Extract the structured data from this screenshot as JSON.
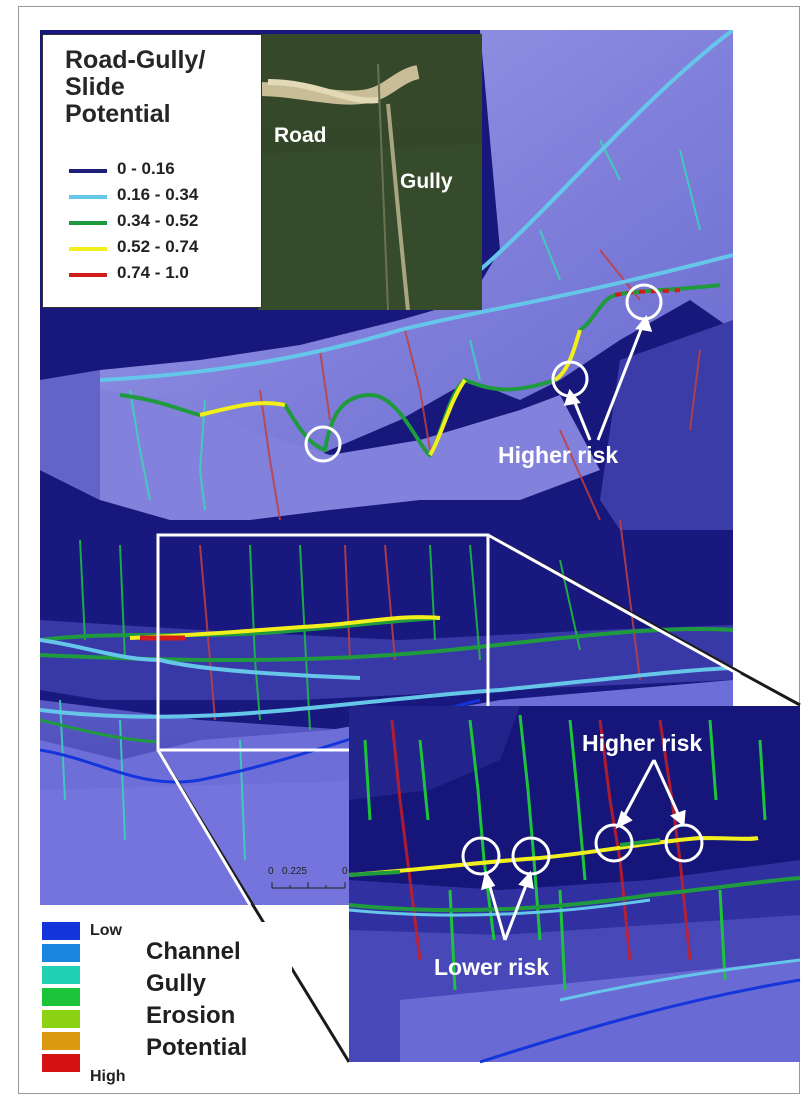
{
  "legend": {
    "title_line1": "Road-Gully/",
    "title_line2": "Slide",
    "title_line3": "Potential",
    "classes": [
      {
        "label": "0 - 0.16",
        "color": "#1f1f7a"
      },
      {
        "label": "0.16 - 0.34",
        "color": "#66c6ea"
      },
      {
        "label": "0.34 - 0.52",
        "color": "#1f9a3e"
      },
      {
        "label": "0.52 - 0.74",
        "color": "#f2ef1c"
      },
      {
        "label": "0.74 - 1.0",
        "color": "#d21d1d"
      }
    ]
  },
  "aerial": {
    "road_label": "Road",
    "gully_label": "Gully"
  },
  "annotations": {
    "higher_risk_top": "Higher risk",
    "higher_risk_inset": "Higher risk",
    "lower_risk_inset": "Lower risk"
  },
  "scale": {
    "tick0": "0",
    "tick1": "0.225",
    "tick2": "0"
  },
  "erosion_legend": {
    "low": "Low",
    "high": "High",
    "line1": "Channel",
    "line2": "Gully",
    "line3": "Erosion",
    "line4": "Potential",
    "ramp": [
      "#1434dc",
      "#1a86e0",
      "#22d0b4",
      "#1cc43a",
      "#8bd212",
      "#d99a0e",
      "#d41212"
    ]
  },
  "colors": {
    "map_dark": "#17177a",
    "map_light": "#7d7de0",
    "ridge": "#a9a9ee"
  }
}
